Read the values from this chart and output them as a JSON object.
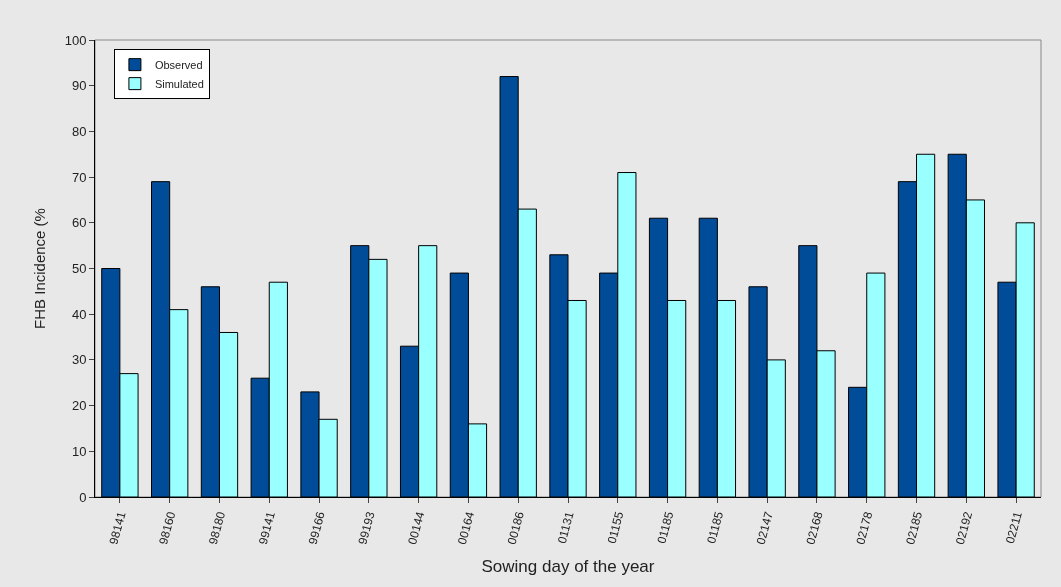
{
  "chart_data": {
    "type": "bar",
    "xlabel": "Sowing day of the year",
    "ylabel": "FHB Incidence (%",
    "categories": [
      "98141",
      "98160",
      "98180",
      "99141",
      "99166",
      "99193",
      "00144",
      "00164",
      "00186",
      "01131",
      "01155",
      "01185",
      "01185",
      "02147",
      "02168",
      "02178",
      "02185",
      "02192",
      "02211"
    ],
    "series": [
      {
        "name": "Observed",
        "color": "#004c99",
        "values": [
          50,
          69,
          46,
          26,
          23,
          55,
          33,
          49,
          92,
          53,
          49,
          61,
          61,
          46,
          55,
          24,
          69,
          75,
          47
        ]
      },
      {
        "name": "Simulated",
        "color": "#99ffff",
        "values": [
          27,
          41,
          36,
          47,
          17,
          52,
          55,
          16,
          63,
          43,
          71,
          43,
          43,
          30,
          32,
          49,
          75,
          65,
          60
        ]
      }
    ],
    "ylim": [
      0,
      100
    ],
    "yticks": [
      0,
      10,
      20,
      30,
      40,
      50,
      60,
      70,
      80,
      90,
      100
    ],
    "grid": false,
    "legend": "top left"
  }
}
